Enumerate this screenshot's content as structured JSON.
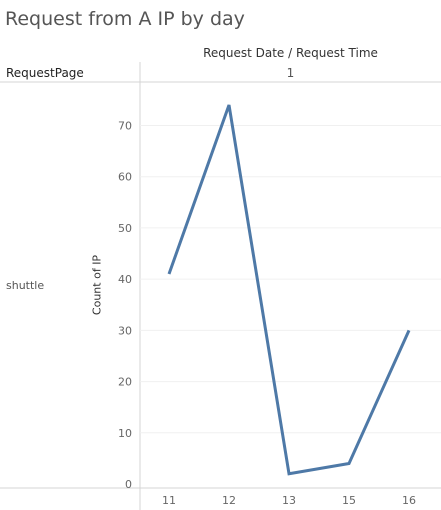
{
  "title": "Request from A IP by day",
  "column_header": "Request Date / Request Time",
  "column_value": "1",
  "row_field_header": "RequestPage",
  "row_label": "shuttle",
  "colors": {
    "line": "#4e79a7",
    "grid": "#f0f0f0",
    "divider": "#d4d4d4",
    "tick_text": "#666666"
  },
  "chart_data": {
    "type": "line",
    "title": "Request from A IP by day",
    "xlabel": "",
    "ylabel": "Count of IP",
    "categories": [
      "11",
      "12",
      "13",
      "15",
      "16"
    ],
    "values": [
      41,
      74,
      2,
      4,
      30
    ],
    "ylim": [
      0,
      77
    ],
    "yticks": [
      0,
      10,
      20,
      30,
      40,
      50,
      60,
      70
    ],
    "grid": true,
    "legend": "none"
  }
}
